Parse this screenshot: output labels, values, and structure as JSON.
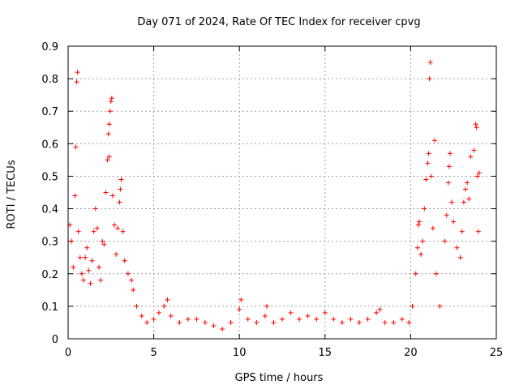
{
  "chart_data": {
    "type": "scatter",
    "title": "Day 071 of 2024, Rate Of TEC Index for receiver cpvg",
    "xlabel": "GPS time / hours",
    "ylabel": "ROTI / TECUs",
    "xlim": [
      0,
      25
    ],
    "ylim": [
      0,
      0.9
    ],
    "x_ticks": [
      "0",
      "5",
      "10",
      "15",
      "20",
      "25"
    ],
    "y_ticks": [
      "0",
      "0.1",
      "0.2",
      "0.3",
      "0.4",
      "0.5",
      "0.6",
      "0.7",
      "0.8",
      "0.9"
    ],
    "grid": true,
    "marker": "+",
    "color": "#ff0000",
    "series": [
      {
        "name": "ROTI",
        "points": [
          [
            0.1,
            0.35
          ],
          [
            0.2,
            0.3
          ],
          [
            0.3,
            0.22
          ],
          [
            0.4,
            0.44
          ],
          [
            0.45,
            0.59
          ],
          [
            0.5,
            0.79
          ],
          [
            0.55,
            0.82
          ],
          [
            0.6,
            0.33
          ],
          [
            0.7,
            0.25
          ],
          [
            0.8,
            0.2
          ],
          [
            0.9,
            0.18
          ],
          [
            1.0,
            0.25
          ],
          [
            1.1,
            0.28
          ],
          [
            1.2,
            0.21
          ],
          [
            1.3,
            0.17
          ],
          [
            1.4,
            0.24
          ],
          [
            1.5,
            0.33
          ],
          [
            1.6,
            0.4
          ],
          [
            1.7,
            0.34
          ],
          [
            1.8,
            0.22
          ],
          [
            1.9,
            0.18
          ],
          [
            2.0,
            0.3
          ],
          [
            2.1,
            0.29
          ],
          [
            2.2,
            0.45
          ],
          [
            2.3,
            0.55
          ],
          [
            2.35,
            0.63
          ],
          [
            2.4,
            0.66
          ],
          [
            2.45,
            0.7
          ],
          [
            2.5,
            0.73
          ],
          [
            2.55,
            0.74
          ],
          [
            2.4,
            0.56
          ],
          [
            2.6,
            0.44
          ],
          [
            2.7,
            0.35
          ],
          [
            2.8,
            0.26
          ],
          [
            2.9,
            0.34
          ],
          [
            3.0,
            0.42
          ],
          [
            3.05,
            0.46
          ],
          [
            3.1,
            0.49
          ],
          [
            3.2,
            0.33
          ],
          [
            3.3,
            0.24
          ],
          [
            3.5,
            0.2
          ],
          [
            3.7,
            0.18
          ],
          [
            3.8,
            0.15
          ],
          [
            4.0,
            0.1
          ],
          [
            4.3,
            0.07
          ],
          [
            4.6,
            0.05
          ],
          [
            5.0,
            0.06
          ],
          [
            5.3,
            0.08
          ],
          [
            5.6,
            0.1
          ],
          [
            5.8,
            0.12
          ],
          [
            6.0,
            0.07
          ],
          [
            6.5,
            0.05
          ],
          [
            7.0,
            0.06
          ],
          [
            7.5,
            0.06
          ],
          [
            8.0,
            0.05
          ],
          [
            8.5,
            0.04
          ],
          [
            9.0,
            0.03
          ],
          [
            9.5,
            0.05
          ],
          [
            10.0,
            0.09
          ],
          [
            10.1,
            0.12
          ],
          [
            10.5,
            0.06
          ],
          [
            11.0,
            0.05
          ],
          [
            11.5,
            0.07
          ],
          [
            11.6,
            0.1
          ],
          [
            12.0,
            0.05
          ],
          [
            12.5,
            0.06
          ],
          [
            13.0,
            0.08
          ],
          [
            13.5,
            0.06
          ],
          [
            14.0,
            0.07
          ],
          [
            14.5,
            0.06
          ],
          [
            15.0,
            0.08
          ],
          [
            15.5,
            0.06
          ],
          [
            16.0,
            0.05
          ],
          [
            16.5,
            0.06
          ],
          [
            17.0,
            0.05
          ],
          [
            17.5,
            0.06
          ],
          [
            18.0,
            0.08
          ],
          [
            18.2,
            0.09
          ],
          [
            18.5,
            0.05
          ],
          [
            19.0,
            0.05
          ],
          [
            19.5,
            0.06
          ],
          [
            19.9,
            0.05
          ],
          [
            20.1,
            0.1
          ],
          [
            20.3,
            0.2
          ],
          [
            20.4,
            0.28
          ],
          [
            20.45,
            0.35
          ],
          [
            20.5,
            0.36
          ],
          [
            20.6,
            0.26
          ],
          [
            20.7,
            0.3
          ],
          [
            20.8,
            0.4
          ],
          [
            20.9,
            0.49
          ],
          [
            21.0,
            0.54
          ],
          [
            21.05,
            0.57
          ],
          [
            21.1,
            0.8
          ],
          [
            21.15,
            0.85
          ],
          [
            21.2,
            0.5
          ],
          [
            21.3,
            0.34
          ],
          [
            21.4,
            0.61
          ],
          [
            21.5,
            0.2
          ],
          [
            21.7,
            0.1
          ],
          [
            22.0,
            0.3
          ],
          [
            22.1,
            0.38
          ],
          [
            22.2,
            0.48
          ],
          [
            22.25,
            0.53
          ],
          [
            22.3,
            0.57
          ],
          [
            22.4,
            0.42
          ],
          [
            22.5,
            0.36
          ],
          [
            22.7,
            0.28
          ],
          [
            22.9,
            0.25
          ],
          [
            23.0,
            0.33
          ],
          [
            23.1,
            0.42
          ],
          [
            23.2,
            0.46
          ],
          [
            23.3,
            0.48
          ],
          [
            23.4,
            0.43
          ],
          [
            23.5,
            0.56
          ],
          [
            23.7,
            0.58
          ],
          [
            23.8,
            0.66
          ],
          [
            23.85,
            0.65
          ],
          [
            23.9,
            0.5
          ],
          [
            23.95,
            0.33
          ],
          [
            24.0,
            0.51
          ]
        ]
      }
    ]
  }
}
